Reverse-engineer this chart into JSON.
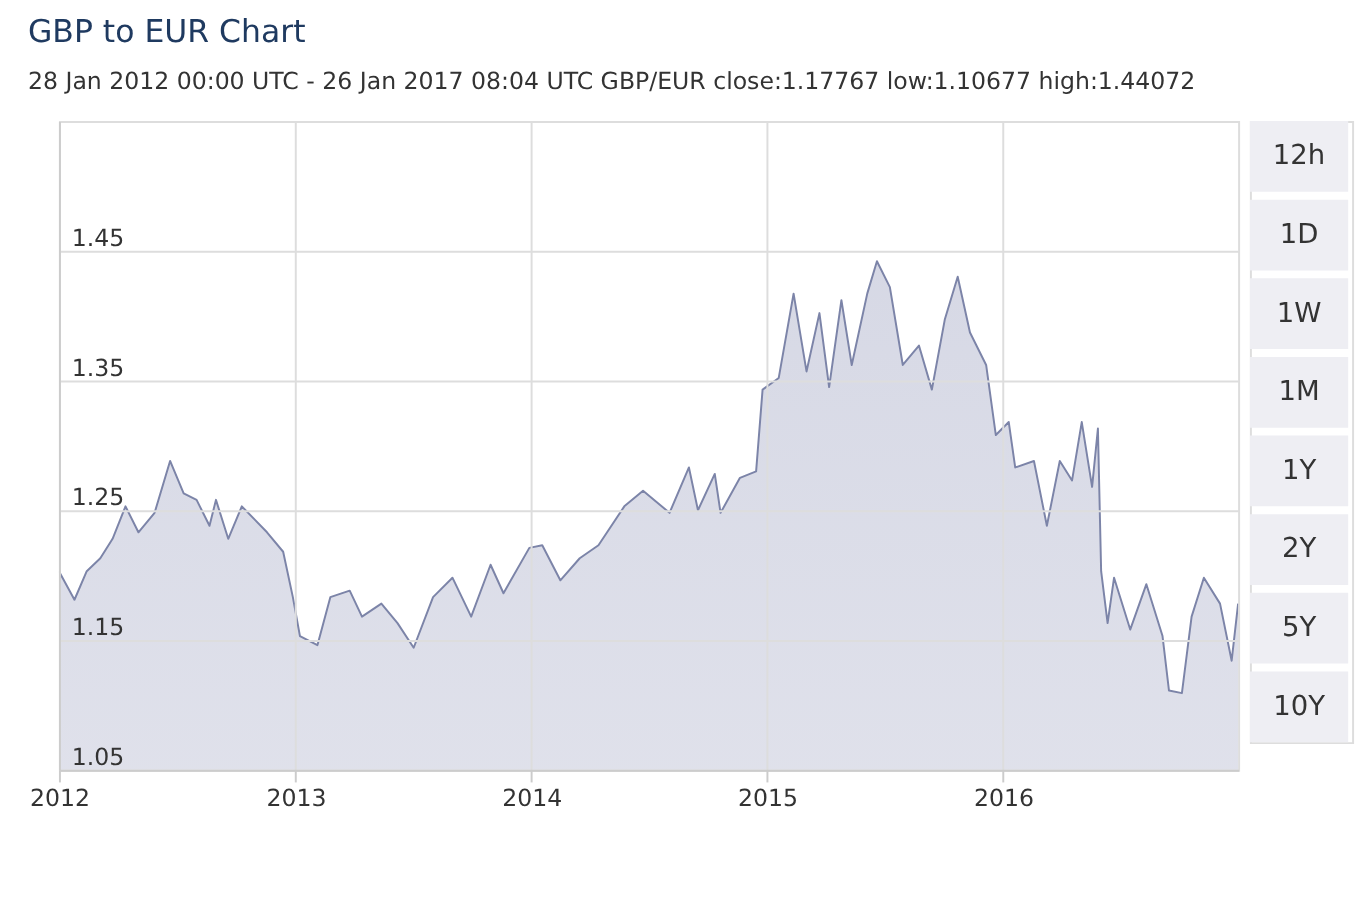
{
  "chart_data": {
    "type": "area",
    "title": "GBP to EUR Chart",
    "subtitle": "28 Jan 2012 00:00 UTC - 26 Jan 2017 08:04 UTC   GBP/EUR close:1.17767 low:1.10677 high:1.44072",
    "annotations": [
      "12h",
      "1D",
      "1W",
      "1M",
      "1Y",
      "2Y",
      "5Y",
      "10Y"
    ],
    "series": [
      {
        "color": "#7c84a8",
        "x": [
          "2012-01-28",
          "2012-02-21",
          "2012-03-11",
          "2012-04-01",
          "2012-04-20",
          "2012-05-10",
          "2012-05-30",
          "2012-06-24",
          "2012-07-18",
          "2012-08-08",
          "2012-08-28",
          "2012-09-17",
          "2012-09-27",
          "2012-10-16",
          "2012-11-06",
          "2012-12-15",
          "2013-01-09",
          "2013-01-24",
          "2013-02-04",
          "2013-03-03",
          "2013-03-23",
          "2013-04-22",
          "2013-05-11",
          "2013-06-10",
          "2013-07-05",
          "2013-07-30",
          "2013-08-29",
          "2013-09-28",
          "2013-10-27",
          "2013-11-26",
          "2013-12-16",
          "2014-01-25",
          "2014-02-14",
          "2014-03-14",
          "2014-04-13",
          "2014-05-12",
          "2014-06-21",
          "2014-07-20",
          "2014-08-30",
          "2014-09-29",
          "2014-10-13",
          "2014-11-08",
          "2014-11-17",
          "2014-12-17",
          "2015-01-11",
          "2015-01-21",
          "2015-02-15",
          "2015-03-10",
          "2015-03-30",
          "2015-04-19",
          "2015-05-04",
          "2015-05-23",
          "2015-06-08",
          "2015-07-02",
          "2015-07-17",
          "2015-08-06",
          "2015-08-26",
          "2015-09-20",
          "2015-10-10",
          "2015-10-30",
          "2015-11-19",
          "2015-12-08",
          "2016-01-02",
          "2016-01-17",
          "2016-02-06",
          "2016-02-16",
          "2016-03-16",
          "2016-04-05",
          "2016-04-25",
          "2016-05-14",
          "2016-05-29",
          "2016-06-14",
          "2016-06-23",
          "2016-06-28",
          "2016-07-08",
          "2016-07-18",
          "2016-08-12",
          "2016-09-06",
          "2016-10-01",
          "2016-10-11",
          "2016-10-31",
          "2016-11-15",
          "2016-12-04",
          "2016-12-29",
          "2017-01-16",
          "2017-01-26"
        ],
        "values": [
          1.203,
          1.181,
          1.203,
          1.213,
          1.228,
          1.253,
          1.233,
          1.248,
          1.288,
          1.263,
          1.258,
          1.238,
          1.258,
          1.228,
          1.253,
          1.233,
          1.218,
          1.183,
          1.153,
          1.146,
          1.183,
          1.188,
          1.168,
          1.178,
          1.163,
          1.144,
          1.183,
          1.198,
          1.168,
          1.208,
          1.186,
          1.221,
          1.223,
          1.196,
          1.213,
          1.223,
          1.253,
          1.265,
          1.248,
          1.283,
          1.25,
          1.278,
          1.248,
          1.275,
          1.28,
          1.343,
          1.352,
          1.417,
          1.357,
          1.402,
          1.345,
          1.412,
          1.362,
          1.417,
          1.442,
          1.422,
          1.362,
          1.377,
          1.343,
          1.397,
          1.43,
          1.387,
          1.362,
          1.308,
          1.318,
          1.283,
          1.288,
          1.238,
          1.288,
          1.273,
          1.318,
          1.268,
          1.313,
          1.203,
          1.163,
          1.198,
          1.158,
          1.193,
          1.153,
          1.111,
          1.109,
          1.168,
          1.198,
          1.178,
          1.134,
          1.178
        ]
      }
    ],
    "xlim": [
      "2012-01-28",
      "2017-01-26"
    ],
    "xticks": [
      {
        "value": "2012-01-28",
        "label": "2012"
      },
      {
        "value": "2013-01-28",
        "label": "2013"
      },
      {
        "value": "2014-01-28",
        "label": "2014"
      },
      {
        "value": "2015-01-28",
        "label": "2015"
      },
      {
        "value": "2016-01-28",
        "label": "2016"
      }
    ],
    "ylim": [
      1.05,
      1.55
    ],
    "yticks": [
      1.05,
      1.15,
      1.25,
      1.35,
      1.45
    ],
    "grid": true
  }
}
